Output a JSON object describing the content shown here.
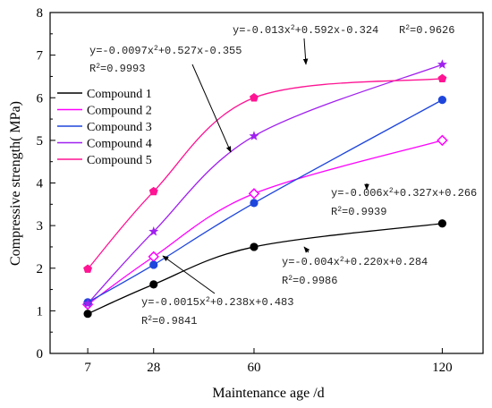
{
  "chart_data": {
    "type": "scatter",
    "xlabel": "Maintenance age /d",
    "ylabel": "Compressive strength( MPa)",
    "x_ticks": [
      7,
      28,
      60,
      120
    ],
    "ylim": [
      0,
      8
    ],
    "y_ticks": [
      0,
      1,
      2,
      3,
      4,
      5,
      6,
      7,
      8
    ],
    "legend_position": "top-left",
    "series": [
      {
        "name": "Compound 1",
        "color": "#000000",
        "marker": "circle",
        "x": [
          7,
          28,
          60,
          120
        ],
        "y": [
          0.93,
          1.62,
          2.5,
          3.05
        ]
      },
      {
        "name": "Compound 2",
        "color": "#ff00ff",
        "marker": "diamond-open",
        "x": [
          7,
          28,
          60,
          120
        ],
        "y": [
          1.15,
          2.27,
          3.75,
          5.0
        ]
      },
      {
        "name": "Compound 3",
        "color": "#1e46dc",
        "marker": "circle",
        "x": [
          7,
          28,
          60,
          120
        ],
        "y": [
          1.2,
          2.08,
          3.53,
          5.95
        ]
      },
      {
        "name": "Compound 4",
        "color": "#a020f0",
        "marker": "star",
        "x": [
          7,
          28,
          60,
          120
        ],
        "y": [
          1.17,
          2.86,
          5.1,
          6.78
        ]
      },
      {
        "name": "Compound 5",
        "color": "#ff1493",
        "marker": "pentagon",
        "x": [
          7,
          28,
          60,
          120
        ],
        "y": [
          1.98,
          3.8,
          6.0,
          6.45
        ]
      }
    ],
    "annotations": [
      {
        "line1_a": "y=-0.013x",
        "line1_b": "+0.592x-0.324",
        "r2": "=0.9626",
        "r2_inline": true
      },
      {
        "line1_a": "y=-0.0097x",
        "line1_b": "+0.527x-0.355",
        "r2": "=0.9993"
      },
      {
        "line1_a": "y=-0.006x",
        "line1_b": "+0.327x+0.266",
        "r2": "=0.9939"
      },
      {
        "line1_a": "y=-0.004x",
        "line1_b": "+0.220x+0.284",
        "r2": "=0.9986"
      },
      {
        "line1_a": "y=-0.0015x",
        "line1_b": "+0.238x+0.483",
        "r2": "=0.9841"
      }
    ]
  }
}
